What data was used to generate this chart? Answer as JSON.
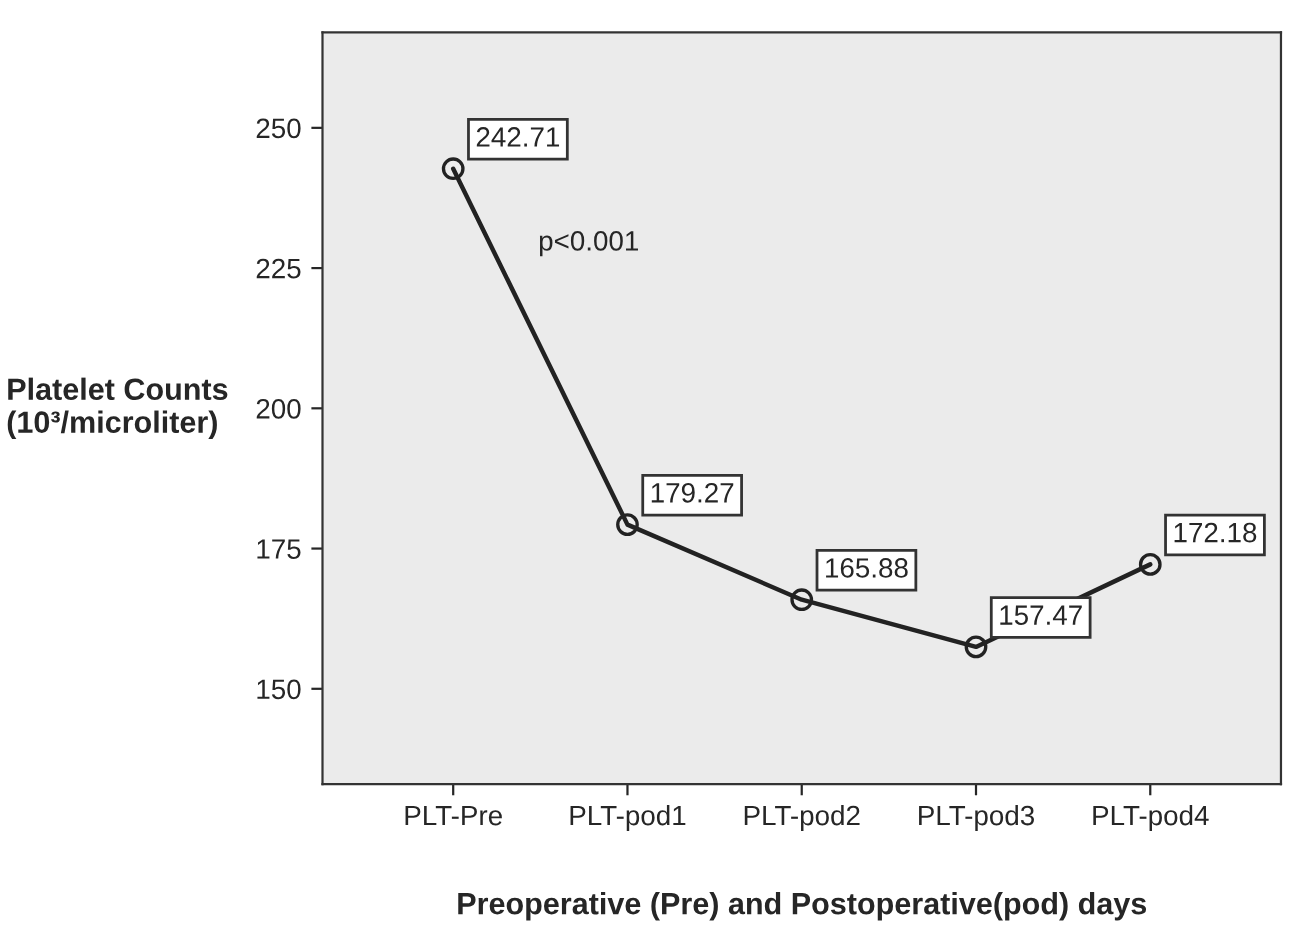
{
  "chart_data": {
    "type": "line",
    "xlabel": "Preoperative (Pre) and Postoperative(pod) days",
    "ylabel": "Platelet Counts\n(10³/microliter)",
    "categories": [
      "PLT-Pre",
      "PLT-pod1",
      "PLT-pod2",
      "PLT-pod3",
      "PLT-pod4"
    ],
    "series": [
      {
        "color": "#222222",
        "values": [
          242.71,
          179.27,
          165.88,
          157.47,
          172.18
        ]
      }
    ],
    "ylim": [
      133,
      267
    ],
    "yticks": [
      150,
      175,
      200,
      225,
      250
    ],
    "data_labels": true,
    "marker": "circle",
    "line_style": "solid",
    "grid": false,
    "annotations": [
      "p<0.001"
    ]
  }
}
